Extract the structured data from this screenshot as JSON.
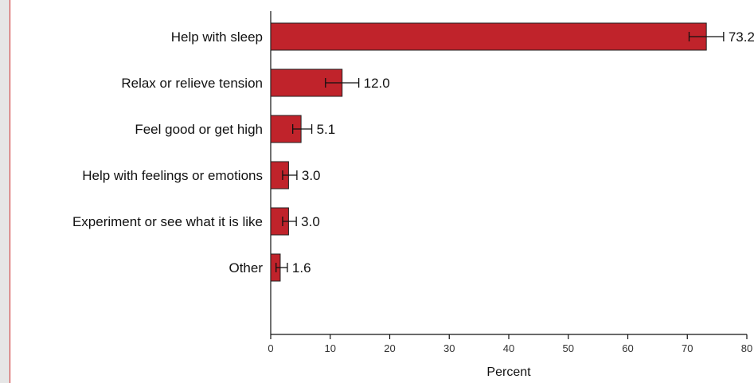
{
  "chart_data": {
    "type": "bar",
    "orientation": "horizontal",
    "title": "",
    "xlabel": "Percent",
    "ylabel": "",
    "xlim": [
      0,
      80
    ],
    "xticks": [
      0,
      10,
      20,
      30,
      40,
      50,
      60,
      70,
      80
    ],
    "grid": false,
    "legend": "none",
    "bar_color": "#c0232b",
    "categories": [
      "Help with sleep",
      "Relax or relieve tension",
      "Feel good or get high",
      "Help with feelings or emotions",
      "Experiment or see what it is like",
      "Other"
    ],
    "values": [
      73.2,
      12.0,
      5.1,
      3.0,
      3.0,
      1.6
    ],
    "error_low": [
      70.3,
      9.2,
      3.7,
      2.0,
      2.0,
      0.9
    ],
    "error_high": [
      76.1,
      14.8,
      6.9,
      4.4,
      4.3,
      2.8
    ],
    "value_labels": [
      "73.2",
      "12.0",
      "5.1",
      "3.0",
      "3.0",
      "1.6"
    ]
  }
}
